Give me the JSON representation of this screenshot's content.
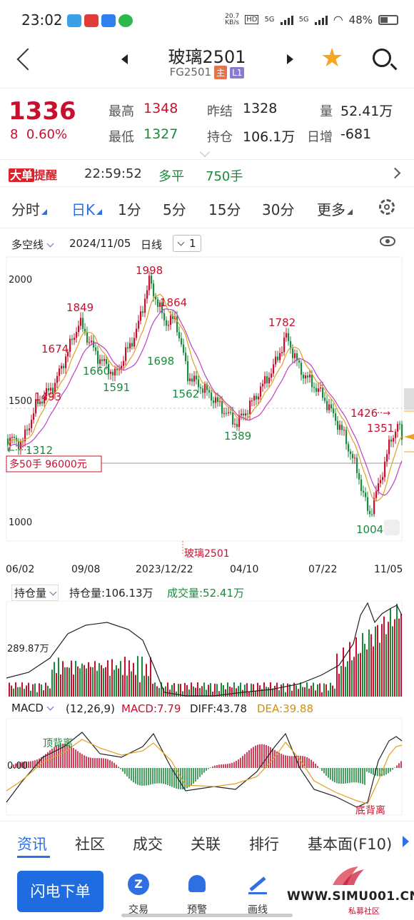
{
  "status_bar": {
    "time": "23:02",
    "net_speed_value": "20.7",
    "net_speed_unit": "KB/s",
    "hd_label": "HD",
    "signal_1": "5G",
    "signal_2": "5G",
    "battery": "48%"
  },
  "header": {
    "title": "玻璃2501",
    "code": "FG2501",
    "tag_main": "主",
    "tag_level": "L1"
  },
  "quote": {
    "last_price": "1336",
    "change": "8",
    "change_pct": "0.60%",
    "high_label": "最高",
    "high": "1348",
    "low_label": "最低",
    "low": "1327",
    "prev_settle_label": "昨结",
    "prev_settle": "1328",
    "open_interest_label": "持仓",
    "open_interest": "106.1万",
    "volume_label": "量",
    "volume": "52.41万",
    "daily_oi_change_label": "日增",
    "daily_oi_change": "-681"
  },
  "big_order": {
    "logo_a": "大单",
    "logo_b": "提醒",
    "time": "22:59:52",
    "type": "多平",
    "qty": "750手"
  },
  "periods": [
    "分时",
    "日K",
    "1分",
    "5分",
    "15分",
    "30分",
    "更多"
  ],
  "active_period": "日K",
  "chart_toolbar": {
    "indicator": "多空线",
    "date": "2024/11/05",
    "cycle": "日线",
    "multiplier": "1"
  },
  "kline": {
    "y_ticks": [
      "2000",
      "1500",
      "1000"
    ],
    "x_ticks": [
      "06/02",
      "09/08",
      "2023/12/22",
      "04/10",
      "07/22",
      "11/05"
    ],
    "contract_label": "玻璃2501",
    "position_label": "多50手  96000元",
    "high_marks": [
      "1493",
      "1674",
      "1849",
      "1998",
      "1864",
      "1782",
      "1426",
      "1351"
    ],
    "low_marks": [
      "1312",
      "1660",
      "1591",
      "1698",
      "1562",
      "1389",
      "1004"
    ]
  },
  "volume_panel": {
    "selector": "持仓量",
    "oi_text": "持仓量:106.13万",
    "vol_text": "成交量:52.41万",
    "y_label": "289.87万"
  },
  "macd_panel": {
    "selector": "MACD",
    "params": "(12,26,9)",
    "macd": "MACD:7.79",
    "diff": "DIFF:43.78",
    "dea": "DEA:39.88",
    "zero_label": "0.00",
    "top_div": "顶背离",
    "bottom_div": "底背离"
  },
  "info_tabs": [
    "资讯",
    "社区",
    "成交",
    "关联",
    "排行",
    "基本面(F10)"
  ],
  "bottom_bar": {
    "flash_order": "闪电下单",
    "items": [
      "交易",
      "预警",
      "画线"
    ],
    "watermark": "WWW.SIMU001.CN",
    "watermark_sub": "私募社区"
  },
  "colors": {
    "up": "#c8102e",
    "down": "#1a8a3c",
    "accent": "#2f6fe4",
    "star": "#f5a623"
  }
}
